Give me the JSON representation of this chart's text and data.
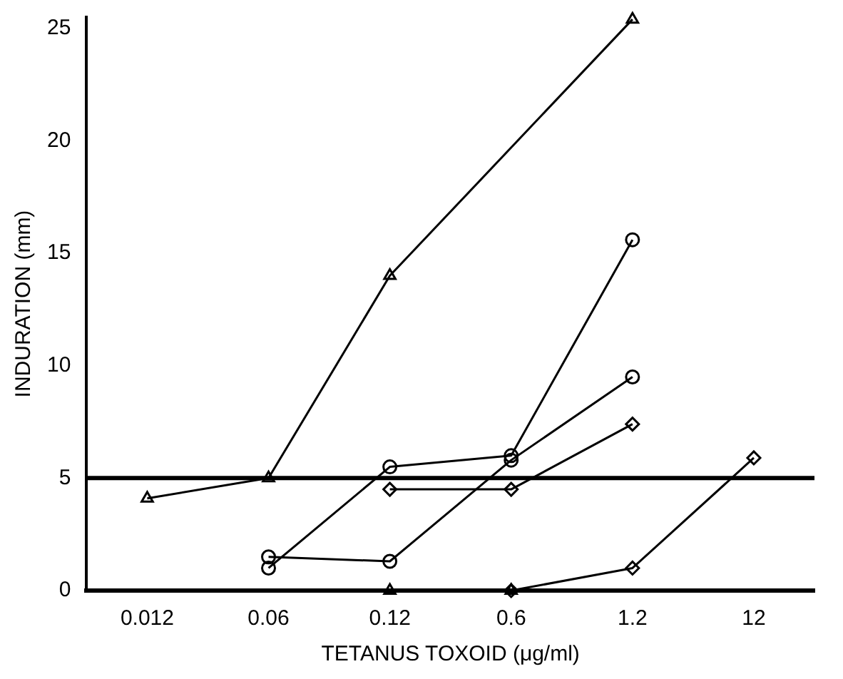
{
  "chart_data": {
    "type": "line",
    "xlabel": "TETANUS TOXOID (μg/ml)",
    "ylabel": "INDURATION (mm)",
    "categories": [
      "0.012",
      "0.06",
      "0.12",
      "0.6",
      "1.2",
      "12"
    ],
    "series": [
      {
        "color": "#000000",
        "marker": "triangle",
        "values": [
          4.1,
          5.0,
          14.0,
          null,
          25.4,
          null
        ]
      },
      {
        "color": "#000000",
        "marker": "circle",
        "values": [
          null,
          1.0,
          5.5,
          6.0,
          15.6,
          null
        ]
      },
      {
        "color": "#000000",
        "marker": "circle",
        "values": [
          null,
          1.5,
          1.3,
          5.8,
          9.5,
          null
        ]
      },
      {
        "color": "#000000",
        "marker": "diamond",
        "values": [
          null,
          null,
          4.5,
          4.5,
          7.4,
          null
        ]
      },
      {
        "color": "#000000",
        "marker": "triangle",
        "type": "scatter",
        "values": [
          null,
          null,
          0,
          0,
          null,
          null
        ]
      },
      {
        "color": "#000000",
        "marker": "diamond",
        "values": [
          null,
          null,
          null,
          0,
          1.0,
          5.9
        ]
      }
    ],
    "ylim": [
      0,
      25.5
    ],
    "yticks": [
      0,
      5,
      10,
      15,
      20,
      25
    ],
    "grid": false,
    "legend": false,
    "line_style": "solid",
    "ref_lines": [
      {
        "axis": "y",
        "value": 5,
        "color": "#000000"
      }
    ]
  }
}
